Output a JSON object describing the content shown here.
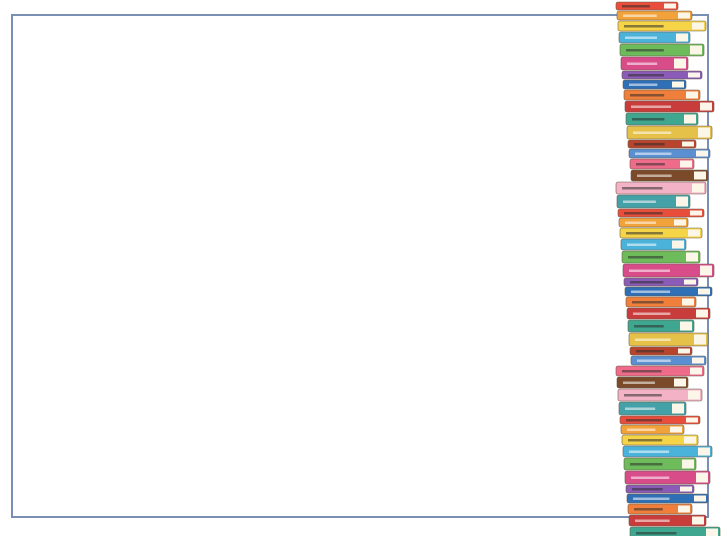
{
  "slide": {
    "frame_color": "#7990b4",
    "background": "#ffffff"
  },
  "decoration": {
    "icon": "book-stack-illustration"
  }
}
